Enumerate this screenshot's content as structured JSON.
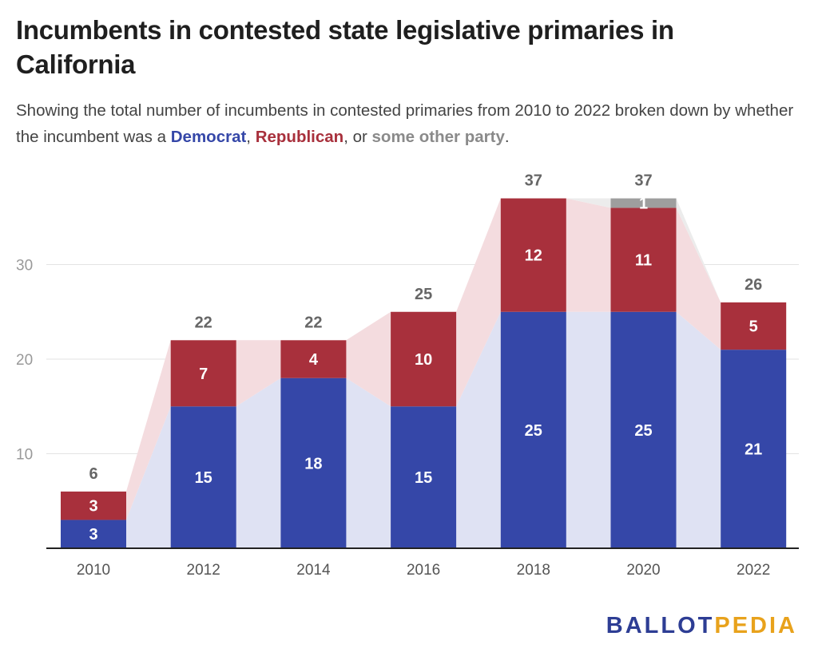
{
  "title": "Incumbents in contested state legislative primaries in California",
  "subtitle": {
    "before": "Showing the total number of incumbents in contested primaries from 2010 to 2022 broken down by whether the incumbent was a ",
    "democrat": "Democrat",
    "comma": ", ",
    "republican": "Republican",
    "middle": ", or ",
    "other": "some other party",
    "end": "."
  },
  "logo": {
    "part1": "BALLOT",
    "part2": "PEDIA"
  },
  "colors": {
    "democrat": "#3547a8",
    "republican": "#a8303c",
    "other": "#9e9e9e",
    "democrat_band": "#dfe2f3",
    "republican_band": "#f4dcdf",
    "other_band": "#ececec",
    "logo_blue": "#2d3d94",
    "logo_gold": "#e8a21c"
  },
  "chart_data": {
    "type": "bar",
    "stacked": true,
    "categories": [
      "2010",
      "2012",
      "2014",
      "2016",
      "2018",
      "2020",
      "2022"
    ],
    "series": [
      {
        "name": "Democrat",
        "values": [
          3,
          15,
          18,
          15,
          25,
          25,
          21
        ]
      },
      {
        "name": "Republican",
        "values": [
          3,
          7,
          4,
          10,
          12,
          11,
          5
        ]
      },
      {
        "name": "some other party",
        "values": [
          0,
          0,
          0,
          0,
          0,
          1,
          0
        ]
      }
    ],
    "totals": [
      6,
      22,
      22,
      25,
      37,
      37,
      26
    ],
    "y_ticks": [
      10,
      20,
      30
    ],
    "ylim": [
      0,
      37
    ],
    "grid": true,
    "legend": "inline in subtitle",
    "connector_bands": true
  }
}
